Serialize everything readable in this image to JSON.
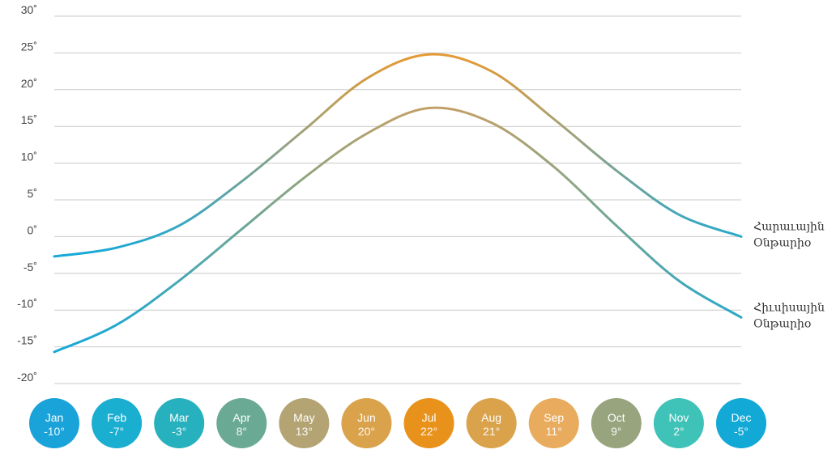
{
  "chart_data": {
    "type": "line",
    "ylim": [
      -20,
      30
    ],
    "yticks": [
      "30˚",
      "25˚",
      "20˚",
      "15˚",
      "10˚",
      "5˚",
      "0˚",
      "-5˚",
      "-10˚",
      "-15˚",
      "-20˚"
    ],
    "ytick_values": [
      30,
      25,
      20,
      15,
      10,
      5,
      0,
      -5,
      -10,
      -15,
      -20
    ],
    "grid": true,
    "categories": [
      "Jan",
      "Feb",
      "Mar",
      "Apr",
      "May",
      "Jun",
      "Jul",
      "Aug",
      "Sep",
      "Oct",
      "Nov",
      "Dec"
    ],
    "series": [
      {
        "name": "Հարաւային Օնթարիօ",
        "values": [
          -2.7,
          -1.5,
          1.5,
          7.5,
          14.5,
          21.5,
          24.8,
          22.5,
          16,
          9,
          3,
          0
        ]
      },
      {
        "name": "Հիւսիսային Օնթարիօ",
        "values": [
          -15.7,
          -12,
          -6,
          1,
          8,
          14,
          17.5,
          15.5,
          9.5,
          1.5,
          -6,
          -11
        ]
      }
    ],
    "month_badges": [
      {
        "name": "Jan",
        "temp": "-10°",
        "color": "#1aa3d9"
      },
      {
        "name": "Feb",
        "temp": "-7°",
        "color": "#1aaed0"
      },
      {
        "name": "Mar",
        "temp": "-3°",
        "color": "#27b0bd"
      },
      {
        "name": "Apr",
        "temp": "8°",
        "color": "#6aaa94"
      },
      {
        "name": "May",
        "temp": "13°",
        "color": "#b4a474"
      },
      {
        "name": "Jun",
        "temp": "20°",
        "color": "#d9a24b"
      },
      {
        "name": "Jul",
        "temp": "22°",
        "color": "#e8921c"
      },
      {
        "name": "Aug",
        "temp": "21°",
        "color": "#d9a24b"
      },
      {
        "name": "Sep",
        "temp": "11°",
        "color": "#e9ac5f"
      },
      {
        "name": "Oct",
        "temp": "9°",
        "color": "#98a47d"
      },
      {
        "name": "Nov",
        "temp": "2°",
        "color": "#3fc2b8"
      },
      {
        "name": "Dec",
        "temp": "-5°",
        "color": "#12a9d6"
      }
    ],
    "line_colors": {
      "cold": "#16a9d8",
      "mid": "#7fa68a",
      "warm": "#e39a35",
      "warm_low": "#c4a066"
    }
  }
}
